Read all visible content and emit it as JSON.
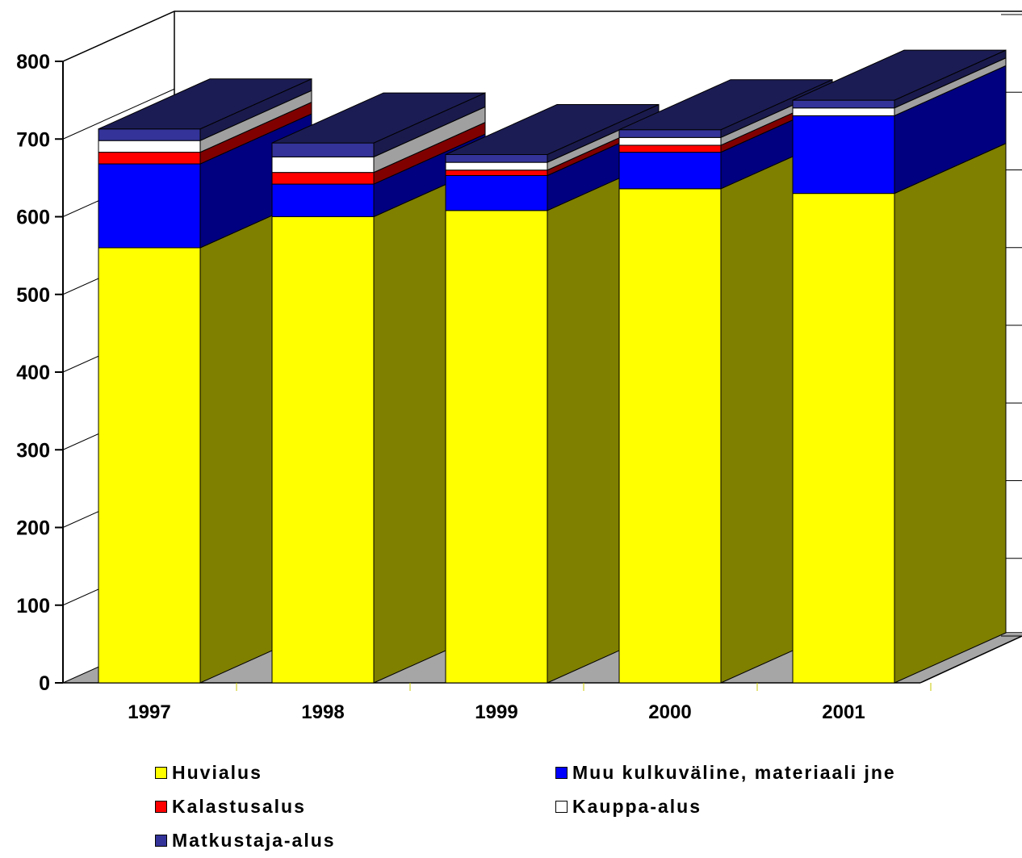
{
  "chart_data": {
    "type": "bar",
    "stacked": true,
    "three_d": true,
    "title": "",
    "xlabel": "",
    "ylabel": "",
    "categories": [
      "1997",
      "1998",
      "1999",
      "2000",
      "2001"
    ],
    "ylim": [
      0,
      800
    ],
    "yticks": [
      0,
      100,
      200,
      300,
      400,
      500,
      600,
      700,
      800
    ],
    "ytick_labels": [
      "0",
      "100",
      "200",
      "300",
      "400",
      "500",
      "600",
      "700",
      "800"
    ],
    "grid": false,
    "legend_position": "bottom",
    "series": [
      {
        "name": "Huvialus",
        "color": "#FFFF00",
        "values": [
          560,
          600,
          608,
          636,
          630
        ]
      },
      {
        "name": "Muu kulkuväline, materiaali jne",
        "color": "#0000FF",
        "values": [
          108,
          42,
          45,
          47,
          100
        ]
      },
      {
        "name": "Kalastusalus",
        "color": "#FF0000",
        "values": [
          15,
          15,
          7,
          9,
          0
        ]
      },
      {
        "name": "Kauppa-alus",
        "color": "#FFFFFF",
        "values": [
          15,
          20,
          10,
          10,
          10
        ]
      },
      {
        "name": "Matkustaja-alus",
        "color": "#333399",
        "values": [
          15,
          18,
          10,
          10,
          10
        ]
      }
    ]
  }
}
